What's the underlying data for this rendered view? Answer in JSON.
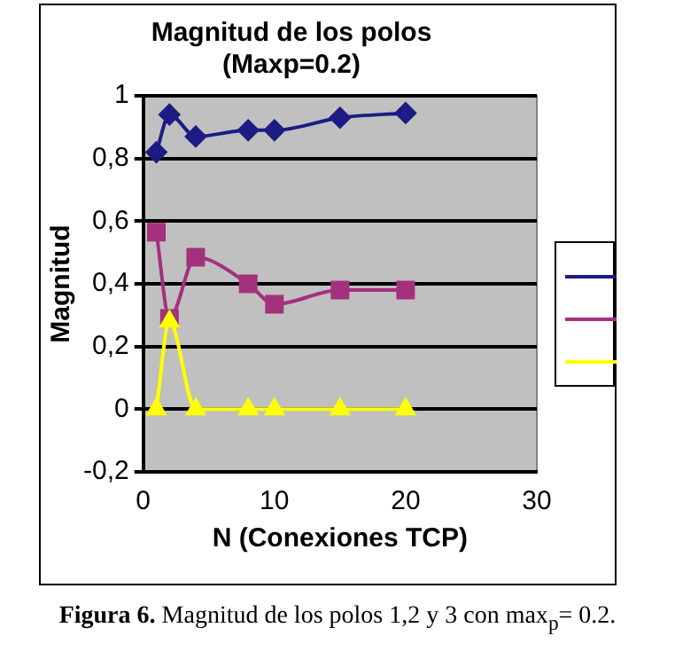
{
  "chart_data": {
    "type": "line",
    "title": "Magnitud de los polos\n(Maxp=0.2)",
    "xlabel": "N (Conexiones TCP)",
    "ylabel": "Magnitud",
    "x": [
      1,
      2,
      4,
      8,
      10,
      15,
      20
    ],
    "series": [
      {
        "color": "#1c1c84",
        "marker": "diamond",
        "values": [
          0.82,
          0.94,
          0.87,
          0.89,
          0.89,
          0.93,
          0.945
        ]
      },
      {
        "color": "#a3317d",
        "marker": "square",
        "values": [
          0.565,
          0.29,
          0.485,
          0.4,
          0.335,
          0.38,
          0.38
        ]
      },
      {
        "color": "#ffff00",
        "marker": "triangle",
        "values": [
          0,
          0.28,
          0,
          0,
          0,
          0,
          0
        ]
      }
    ],
    "xlim": [
      0,
      30
    ],
    "xticks": [
      0,
      10,
      20,
      30
    ],
    "ylim": [
      -0.2,
      1
    ],
    "yticks": [
      {
        "value": -0.2,
        "label": "-0,2"
      },
      0,
      {
        "value": 0.2,
        "label": "0,2"
      },
      {
        "value": 0.4,
        "label": "0,4"
      },
      {
        "value": 0.6,
        "label": "0,6"
      },
      {
        "value": 0.8,
        "label": "0,8"
      },
      1
    ],
    "grid": "y",
    "line_style": "solid",
    "annotations": [
      "**Figura 6.** Magnitud de los polos 1,2 y 3 con max$_{p}$= 0.2."
    ]
  }
}
